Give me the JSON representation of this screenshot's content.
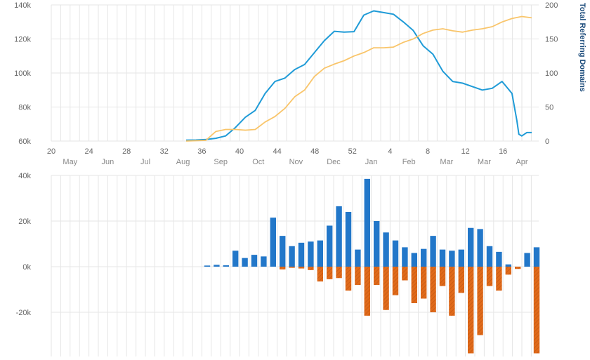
{
  "chart_data": [
    {
      "type": "line",
      "title": "",
      "x_top_labels": [
        "20",
        "24",
        "28",
        "32",
        "36",
        "40",
        "44",
        "48",
        "52",
        "4",
        "8",
        "12",
        "16"
      ],
      "x_month_labels": [
        "May",
        "Jun",
        "Jul",
        "Aug",
        "Sep",
        "Oct",
        "Nov",
        "Dec",
        "Jan",
        "Feb",
        "Mar",
        "Mar",
        "Apr"
      ],
      "y_left_ticks": [
        "60k",
        "80k",
        "100k",
        "120k",
        "140k"
      ],
      "ylim_left": [
        60000,
        140000
      ],
      "y_right_ticks": [
        "0",
        "50",
        "100",
        "150",
        "200"
      ],
      "ylim_right": [
        0,
        200
      ],
      "y_right_label": "Total Referring Domains",
      "series": [
        {
          "axis": "left",
          "color": "#1f9bd7",
          "x": [
            35,
            36,
            37,
            38,
            39,
            40,
            41,
            42,
            43,
            44,
            45,
            46,
            47,
            48,
            49,
            50,
            51,
            52,
            53,
            54,
            55,
            56,
            57,
            58,
            59,
            60,
            61,
            62,
            63,
            64,
            65,
            66,
            67,
            68,
            68.5,
            68.7,
            69,
            69.5,
            70
          ],
          "values": [
            60500,
            60600,
            60900,
            61600,
            63000,
            68000,
            74000,
            78000,
            88000,
            95000,
            97000,
            102000,
            105000,
            112000,
            119000,
            124500,
            124000,
            124300,
            134000,
            136500,
            135500,
            134500,
            130000,
            125000,
            116000,
            111000,
            101000,
            95000,
            94000,
            92000,
            90000,
            91000,
            95000,
            88000,
            72000,
            64000,
            63000,
            65000,
            65000
          ]
        },
        {
          "axis": "right",
          "color": "#f9c56a",
          "x": [
            35,
            36,
            37,
            38,
            39,
            40,
            41,
            42,
            43,
            44,
            45,
            46,
            47,
            48,
            49,
            50,
            51,
            52,
            53,
            54,
            55,
            56,
            57,
            58,
            59,
            60,
            61,
            62,
            63,
            64,
            65,
            66,
            67,
            68,
            69,
            70
          ],
          "values": [
            0,
            0.5,
            1,
            14,
            17,
            17,
            16,
            17,
            28,
            36,
            48,
            65,
            75,
            95,
            107,
            113,
            118,
            125,
            130,
            137,
            137,
            138,
            145,
            150,
            158,
            163,
            165,
            162,
            160,
            163,
            165,
            168,
            175,
            180,
            183,
            181
          ]
        }
      ]
    },
    {
      "type": "bar",
      "y_ticks": [
        "40k",
        "20k",
        "0k",
        "-20k"
      ],
      "ylim": [
        -38000,
        40000
      ],
      "series": [
        {
          "name": "",
          "color": "#2277c9",
          "x": [
            40,
            41,
            42,
            43,
            44,
            45,
            46,
            47,
            48,
            49,
            50,
            51,
            52,
            53,
            54,
            55,
            56,
            57,
            58,
            59,
            60,
            61,
            62,
            63,
            64,
            65,
            66,
            67,
            68,
            69,
            70,
            71,
            72,
            73,
            74,
            75,
            76
          ],
          "values": [
            500,
            800,
            600,
            7000,
            3800,
            5200,
            4500,
            21500,
            13500,
            9000,
            10500,
            11000,
            11500,
            18000,
            26500,
            24000,
            7500,
            38500,
            20000,
            15000,
            11500,
            8500,
            6000,
            7800,
            13500,
            7500,
            7000,
            7500,
            17000,
            16500,
            9000,
            6500,
            1000,
            0,
            6000,
            8500,
            0
          ]
        },
        {
          "name": "",
          "color": "#e06a1a",
          "x": [
            40,
            41,
            42,
            43,
            44,
            45,
            46,
            47,
            48,
            49,
            50,
            51,
            52,
            53,
            54,
            55,
            56,
            57,
            58,
            59,
            60,
            61,
            62,
            63,
            64,
            65,
            66,
            67,
            68,
            69,
            70,
            71,
            72,
            73,
            74,
            75,
            76
          ],
          "values": [
            0,
            0,
            0,
            0,
            0,
            0,
            0,
            0,
            -1200,
            -500,
            -800,
            -1500,
            -6500,
            -5500,
            -5000,
            -10500,
            -8000,
            -21500,
            -8000,
            -19000,
            -12500,
            -6000,
            -16000,
            -14000,
            -20000,
            -8500,
            -21500,
            -11500,
            -38000,
            -30000,
            -8500,
            -10500,
            -3500,
            -1000,
            0,
            -38000,
            0
          ]
        }
      ]
    }
  ]
}
